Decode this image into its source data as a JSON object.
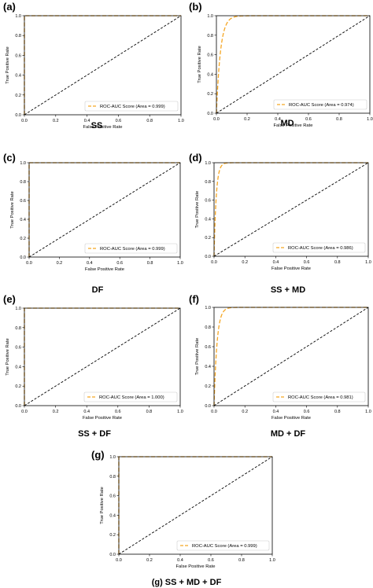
{
  "colors": {
    "roc": "#f5a623",
    "diagonal": "#000000",
    "axis": "#000000"
  },
  "chart_data": [
    {
      "type": "line",
      "letter": "(a)",
      "caption": "SS",
      "xlabel": "False Positive Rate",
      "ylabel": "True Positive Rate",
      "xlim": [
        0,
        1
      ],
      "ylim": [
        0,
        1
      ],
      "xticks": [
        "0.0",
        "0.2",
        "0.4",
        "0.6",
        "0.8",
        "1.0"
      ],
      "yticks": [
        "0.0",
        "0.2",
        "0.4",
        "0.6",
        "0.8",
        "1.0"
      ],
      "legend_label": "ROC-AUC Score (Area = 0.999)",
      "legend_position": "lower-right",
      "auc": 0.999
    },
    {
      "type": "line",
      "letter": "(b)",
      "caption": "MD",
      "xlabel": "False Positive Rate",
      "ylabel": "True Positive Rate",
      "xlim": [
        0,
        1
      ],
      "ylim": [
        0,
        1
      ],
      "xticks": [
        "0.0",
        "0.2",
        "0.4",
        "0.6",
        "0.8",
        "1.0"
      ],
      "yticks": [
        "0.0",
        "0.2",
        "0.4",
        "0.6",
        "0.8",
        "1.0"
      ],
      "legend_label": "ROC-AUC Score (Area = 0.974)",
      "legend_position": "lower-right",
      "auc": 0.974
    },
    {
      "type": "line",
      "letter": "(c)",
      "caption": "DF",
      "xlabel": "False Positive Rate",
      "ylabel": "True Positive Rate",
      "xlim": [
        0,
        1
      ],
      "ylim": [
        0,
        1
      ],
      "xticks": [
        "0.0",
        "0.2",
        "0.4",
        "0.6",
        "0.8",
        "1.0"
      ],
      "yticks": [
        "0.0",
        "0.2",
        "0.4",
        "0.6",
        "0.8",
        "1.0"
      ],
      "legend_label": "ROC-AUC Score (Area = 0.999)",
      "legend_position": "lower-right",
      "auc": 0.999
    },
    {
      "type": "line",
      "letter": "(d)",
      "caption": "SS + MD",
      "xlabel": "False Positive Rate",
      "ylabel": "True Positive Rate",
      "xlim": [
        0,
        1
      ],
      "ylim": [
        0,
        1
      ],
      "xticks": [
        "0.0",
        "0.2",
        "0.4",
        "0.6",
        "0.8",
        "1.0"
      ],
      "yticks": [
        "0.0",
        "0.2",
        "0.4",
        "0.6",
        "0.8",
        "1.0"
      ],
      "legend_label": "ROC-AUC Score (Area = 0.986)",
      "legend_position": "lower-right",
      "auc": 0.986
    },
    {
      "type": "line",
      "letter": "(e)",
      "caption": "SS + DF",
      "xlabel": "False Positive Rate",
      "ylabel": "True Positive Rate",
      "xlim": [
        0,
        1
      ],
      "ylim": [
        0,
        1
      ],
      "xticks": [
        "0.0",
        "0.2",
        "0.4",
        "0.6",
        "0.8",
        "1.0"
      ],
      "yticks": [
        "0.0",
        "0.2",
        "0.4",
        "0.6",
        "0.8",
        "1.0"
      ],
      "legend_label": "ROC-AUC Score (Area = 1.000)",
      "legend_position": "lower-right",
      "auc": 1.0
    },
    {
      "type": "line",
      "letter": "(f)",
      "caption": "MD + DF",
      "xlabel": "False Positive Rate",
      "ylabel": "True Positive Rate",
      "xlim": [
        0,
        1
      ],
      "ylim": [
        0,
        1
      ],
      "xticks": [
        "0.0",
        "0.2",
        "0.4",
        "0.6",
        "0.8",
        "1.0"
      ],
      "yticks": [
        "0.0",
        "0.2",
        "0.4",
        "0.6",
        "0.8",
        "1.0"
      ],
      "legend_label": "ROC-AUC Score (Area = 0.981)",
      "legend_position": "lower-right",
      "auc": 0.981
    },
    {
      "type": "line",
      "letter": "(g)",
      "caption": "(g) SS + MD + DF",
      "xlabel": "False Positive Rate",
      "ylabel": "True Positive Rate",
      "xlim": [
        0,
        1
      ],
      "ylim": [
        0,
        1
      ],
      "xticks": [
        "0.0",
        "0.2",
        "0.4",
        "0.6",
        "0.8",
        "1.0"
      ],
      "yticks": [
        "0.0",
        "0.2",
        "0.4",
        "0.6",
        "0.8",
        "1.0"
      ],
      "legend_label": "ROC-AUC Score (Area = 0.999)",
      "legend_position": "lower-right",
      "auc": 0.999
    }
  ]
}
